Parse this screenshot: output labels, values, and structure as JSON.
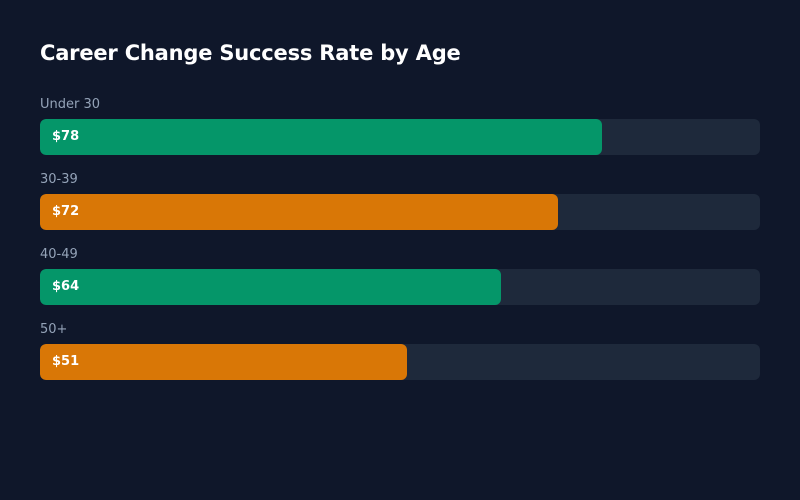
{
  "chart_data": {
    "type": "bar",
    "orientation": "horizontal",
    "title": "Career Change Success Rate by Age",
    "xlabel": "",
    "ylabel": "",
    "xlim": [
      0,
      100
    ],
    "grid": false,
    "value_labels": [
      "$78",
      "$72",
      "$64",
      "$51"
    ],
    "categories": [
      "Under 30",
      "30-39",
      "40-49",
      "50+"
    ],
    "values": [
      78,
      72,
      64,
      51
    ],
    "colors": [
      "#059669",
      "#d97706",
      "#059669",
      "#d97706"
    ],
    "track_color": "#1e293b"
  }
}
